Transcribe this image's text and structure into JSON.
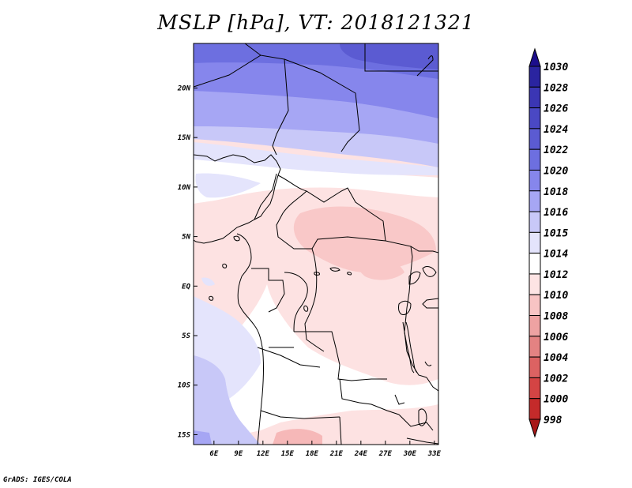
{
  "title": "MSLP [hPa], VT: 2018121321",
  "credit": "GrADS: IGES/COLA",
  "map": {
    "lon_range": [
      3.5,
      33.5
    ],
    "lat_range": [
      -16,
      24.5
    ],
    "x_ticks": [
      {
        "value": 6,
        "label": "6E"
      },
      {
        "value": 9,
        "label": "9E"
      },
      {
        "value": 12,
        "label": "12E"
      },
      {
        "value": 15,
        "label": "15E"
      },
      {
        "value": 18,
        "label": "18E"
      },
      {
        "value": 21,
        "label": "21E"
      },
      {
        "value": 24,
        "label": "24E"
      },
      {
        "value": 27,
        "label": "27E"
      },
      {
        "value": 30,
        "label": "30E"
      },
      {
        "value": 33,
        "label": "33E"
      }
    ],
    "y_ticks": [
      {
        "value": 20,
        "label": "20N"
      },
      {
        "value": 15,
        "label": "15N"
      },
      {
        "value": 10,
        "label": "10N"
      },
      {
        "value": 5,
        "label": "5N"
      },
      {
        "value": 0,
        "label": "EQ"
      },
      {
        "value": -5,
        "label": "5S"
      },
      {
        "value": -10,
        "label": "10S"
      },
      {
        "value": -15,
        "label": "15S"
      }
    ]
  },
  "colorbar": {
    "levels": [
      "1030",
      "1028",
      "1026",
      "1024",
      "1022",
      "1020",
      "1018",
      "1016",
      "1015",
      "1014",
      "1012",
      "1010",
      "1008",
      "1006",
      "1004",
      "1002",
      "1000",
      "998"
    ],
    "colors": [
      "#1c0e8c",
      "#2a24a0",
      "#3b36b4",
      "#4a48c4",
      "#5b5bd2",
      "#6d6fe0",
      "#8686ec",
      "#a6a6f4",
      "#c8c8f8",
      "#e4e4fc",
      "#ffffff",
      "#fde4e4",
      "#f8c4c4",
      "#eea2a2",
      "#e48282",
      "#dc6262",
      "#d44444",
      "#c42a2a",
      "#a81818"
    ]
  }
}
